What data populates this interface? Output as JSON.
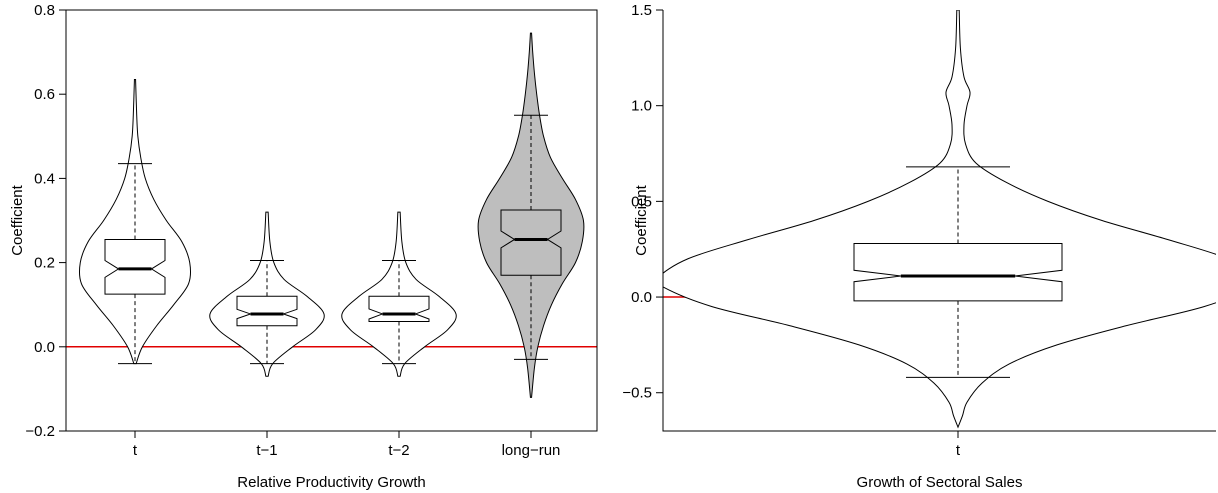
{
  "chart_data": [
    {
      "type": "violin",
      "xlabel": "Relative Productivity Growth",
      "ylabel": "Coefficient",
      "ylim": [
        -0.2,
        0.8
      ],
      "yticks": [
        -0.2,
        0.0,
        0.2,
        0.4,
        0.6,
        0.8
      ],
      "ytick_labels": [
        "−0.2",
        "0.0",
        "0.2",
        "0.4",
        "0.6",
        "0.8"
      ],
      "reference_line": {
        "y": 0.0,
        "color": "#e00000"
      },
      "categories": [
        "t",
        "t−1",
        "t−2",
        "long−run"
      ],
      "series": [
        {
          "category": "t",
          "fill": "#ffffff",
          "whisker_low": -0.04,
          "q1": 0.125,
          "median": 0.185,
          "q3": 0.255,
          "whisker_high": 0.435,
          "notch_low": 0.165,
          "notch_high": 0.205,
          "min": -0.04,
          "max": 0.635,
          "density": [
            [
              -0.04,
              0.02
            ],
            [
              0.0,
              0.13
            ],
            [
              0.05,
              0.38
            ],
            [
              0.1,
              0.68
            ],
            [
              0.15,
              0.94
            ],
            [
              0.2,
              0.96
            ],
            [
              0.25,
              0.82
            ],
            [
              0.3,
              0.55
            ],
            [
              0.35,
              0.33
            ],
            [
              0.4,
              0.18
            ],
            [
              0.45,
              0.1
            ],
            [
              0.5,
              0.05
            ],
            [
              0.55,
              0.03
            ],
            [
              0.635,
              0.01
            ]
          ]
        },
        {
          "category": "t−1",
          "fill": "#ffffff",
          "whisker_low": -0.04,
          "q1": 0.05,
          "median": 0.078,
          "q3": 0.12,
          "whisker_high": 0.205,
          "notch_low": 0.067,
          "notch_high": 0.089,
          "min": -0.07,
          "max": 0.32,
          "density": [
            [
              -0.07,
              0.02
            ],
            [
              -0.04,
              0.1
            ],
            [
              0.0,
              0.45
            ],
            [
              0.04,
              0.85
            ],
            [
              0.078,
              1.0
            ],
            [
              0.12,
              0.7
            ],
            [
              0.16,
              0.3
            ],
            [
              0.2,
              0.12
            ],
            [
              0.25,
              0.05
            ],
            [
              0.32,
              0.02
            ]
          ]
        },
        {
          "category": "t−2",
          "fill": "#ffffff",
          "whisker_low": -0.04,
          "q1": 0.06,
          "median": 0.078,
          "q3": 0.12,
          "whisker_high": 0.205,
          "notch_low": 0.066,
          "notch_high": 0.09,
          "min": -0.07,
          "max": 0.32,
          "density": [
            [
              -0.07,
              0.02
            ],
            [
              -0.04,
              0.1
            ],
            [
              0.0,
              0.45
            ],
            [
              0.04,
              0.85
            ],
            [
              0.078,
              1.0
            ],
            [
              0.12,
              0.7
            ],
            [
              0.16,
              0.3
            ],
            [
              0.2,
              0.12
            ],
            [
              0.25,
              0.05
            ],
            [
              0.32,
              0.02
            ]
          ]
        },
        {
          "category": "long−run",
          "fill": "#bebebe",
          "whisker_low": -0.03,
          "q1": 0.17,
          "median": 0.255,
          "q3": 0.325,
          "whisker_high": 0.55,
          "notch_low": 0.235,
          "notch_high": 0.275,
          "min": -0.12,
          "max": 0.745,
          "density": [
            [
              -0.12,
              0.01
            ],
            [
              -0.05,
              0.06
            ],
            [
              0.0,
              0.12
            ],
            [
              0.05,
              0.22
            ],
            [
              0.1,
              0.36
            ],
            [
              0.15,
              0.55
            ],
            [
              0.2,
              0.78
            ],
            [
              0.25,
              0.9
            ],
            [
              0.3,
              0.92
            ],
            [
              0.35,
              0.78
            ],
            [
              0.4,
              0.55
            ],
            [
              0.45,
              0.34
            ],
            [
              0.5,
              0.22
            ],
            [
              0.55,
              0.15
            ],
            [
              0.6,
              0.1
            ],
            [
              0.65,
              0.06
            ],
            [
              0.7,
              0.03
            ],
            [
              0.745,
              0.01
            ]
          ]
        }
      ]
    },
    {
      "type": "violin",
      "xlabel": "Growth of Sectoral Sales",
      "ylabel": "Coefficient",
      "ylim": [
        -0.7,
        1.5
      ],
      "yticks": [
        -0.5,
        0.0,
        0.5,
        1.0,
        1.5
      ],
      "ytick_labels": [
        "−0.5",
        "0.0",
        "0.5",
        "1.0",
        "1.5"
      ],
      "reference_line": {
        "y": 0.0,
        "color": "#e00000"
      },
      "categories": [
        "t"
      ],
      "series": [
        {
          "category": "t",
          "fill": "#ffffff",
          "whisker_low": -0.42,
          "q1": -0.02,
          "median": 0.11,
          "q3": 0.28,
          "whisker_high": 0.68,
          "notch_low": 0.08,
          "notch_high": 0.14,
          "min": -0.68,
          "max": 1.5,
          "density": [
            [
              -0.68,
              0.0
            ],
            [
              -0.62,
              0.015
            ],
            [
              -0.55,
              0.03
            ],
            [
              -0.45,
              0.08
            ],
            [
              -0.35,
              0.17
            ],
            [
              -0.25,
              0.33
            ],
            [
              -0.15,
              0.56
            ],
            [
              -0.05,
              0.82
            ],
            [
              0.05,
              0.98
            ],
            [
              0.1,
              1.0
            ],
            [
              0.2,
              0.9
            ],
            [
              0.3,
              0.7
            ],
            [
              0.4,
              0.48
            ],
            [
              0.5,
              0.3
            ],
            [
              0.6,
              0.16
            ],
            [
              0.7,
              0.06
            ],
            [
              0.8,
              0.025
            ],
            [
              0.9,
              0.02
            ],
            [
              1.0,
              0.03
            ],
            [
              1.07,
              0.04
            ],
            [
              1.15,
              0.02
            ],
            [
              1.3,
              0.008
            ],
            [
              1.5,
              0.004
            ]
          ]
        }
      ]
    }
  ]
}
